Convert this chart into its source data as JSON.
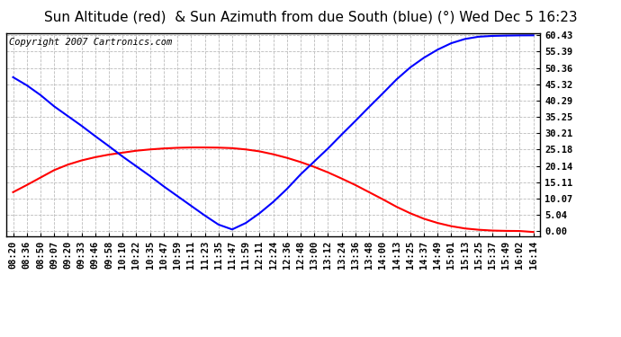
{
  "title": "Sun Altitude (red)  & Sun Azimuth from due South (blue) (°) Wed Dec 5 16:23",
  "copyright": "Copyright 2007 Cartronics.com",
  "background_color": "#ffffff",
  "plot_bg_color": "#ffffff",
  "grid_color": "#bbbbbb",
  "yticks": [
    0.0,
    5.04,
    10.07,
    15.11,
    20.14,
    25.18,
    30.21,
    35.25,
    40.29,
    45.32,
    50.36,
    55.39,
    60.43
  ],
  "x_labels": [
    "08:20",
    "08:36",
    "08:50",
    "09:07",
    "09:20",
    "09:33",
    "09:46",
    "09:58",
    "10:10",
    "10:22",
    "10:35",
    "10:47",
    "10:59",
    "11:11",
    "11:23",
    "11:35",
    "11:47",
    "11:59",
    "12:11",
    "12:24",
    "12:36",
    "12:48",
    "13:00",
    "13:12",
    "13:24",
    "13:36",
    "13:48",
    "14:00",
    "14:13",
    "14:25",
    "14:37",
    "14:49",
    "15:01",
    "15:13",
    "15:25",
    "15:37",
    "15:49",
    "16:02",
    "16:14"
  ],
  "red_values": [
    12.0,
    14.2,
    16.5,
    18.8,
    20.5,
    21.8,
    22.8,
    23.6,
    24.2,
    24.8,
    25.2,
    25.5,
    25.7,
    25.8,
    25.8,
    25.75,
    25.6,
    25.2,
    24.6,
    23.7,
    22.6,
    21.3,
    19.8,
    18.1,
    16.2,
    14.2,
    12.0,
    9.8,
    7.5,
    5.5,
    3.8,
    2.5,
    1.5,
    0.8,
    0.4,
    0.15,
    0.05,
    0.01,
    -0.3
  ],
  "blue_values": [
    47.5,
    45.0,
    42.0,
    38.5,
    35.5,
    32.5,
    29.3,
    26.2,
    23.0,
    20.0,
    17.0,
    13.8,
    10.8,
    7.8,
    4.8,
    2.0,
    0.5,
    2.5,
    5.5,
    9.0,
    13.0,
    17.5,
    21.5,
    25.5,
    29.8,
    34.0,
    38.3,
    42.5,
    46.8,
    50.5,
    53.5,
    56.0,
    58.0,
    59.3,
    60.0,
    60.25,
    60.35,
    60.41,
    60.43
  ],
  "red_color": "#ff0000",
  "blue_color": "#0000ff",
  "title_fontsize": 11,
  "tick_fontsize": 7.5,
  "copyright_fontsize": 7.5
}
